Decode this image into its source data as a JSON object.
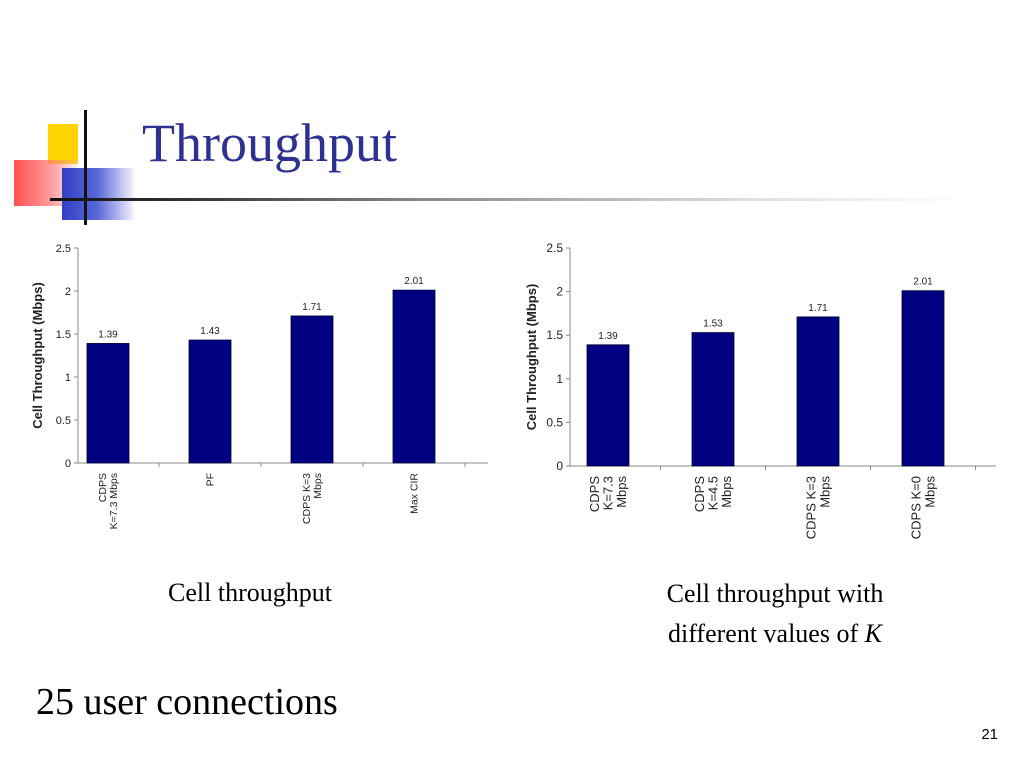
{
  "slide": {
    "title": "Throughput",
    "footer": "25 user connections",
    "page_number": "21",
    "caption_left": "Cell throughput",
    "caption_right_line1": "Cell throughput with",
    "caption_right_line2_prefix": "different values of ",
    "caption_right_line2_var": "K",
    "colors": {
      "title": "#2e3192",
      "bar": "#000080"
    }
  },
  "chart_data": [
    {
      "type": "bar",
      "categories": [
        [
          "CDPS",
          "K=7.3 Mbps"
        ],
        [
          "PF"
        ],
        [
          "CDPS K=3",
          "Mbps"
        ],
        [
          "Max CIR"
        ]
      ],
      "values": [
        1.39,
        1.43,
        1.71,
        2.01
      ],
      "data_labels": [
        "1.39",
        "1.43",
        "1.71",
        "2.01"
      ],
      "ylabel": "Cell Throughput (Mbps)",
      "ylim": [
        0,
        2.5
      ],
      "yticks": [
        "0",
        "0.5",
        "1",
        "1.5",
        "2",
        "2.5"
      ],
      "grid": false,
      "legend": "none"
    },
    {
      "type": "bar",
      "categories": [
        [
          "CDPS",
          "K=7.3",
          "Mbps"
        ],
        [
          "CDPS",
          "K=4.5",
          "Mbps"
        ],
        [
          "CDPS K=3",
          "Mbps"
        ],
        [
          "CDPS K=0",
          "Mbps"
        ]
      ],
      "values": [
        1.39,
        1.53,
        1.71,
        2.01
      ],
      "data_labels": [
        "1.39",
        "1.53",
        "1.71",
        "2.01"
      ],
      "ylabel": "Cell Throughput (Mbps)",
      "ylim": [
        0,
        2.5
      ],
      "yticks": [
        "0",
        "0.5",
        "1",
        "1.5",
        "2",
        "2.5"
      ],
      "grid": false,
      "legend": "none"
    }
  ]
}
